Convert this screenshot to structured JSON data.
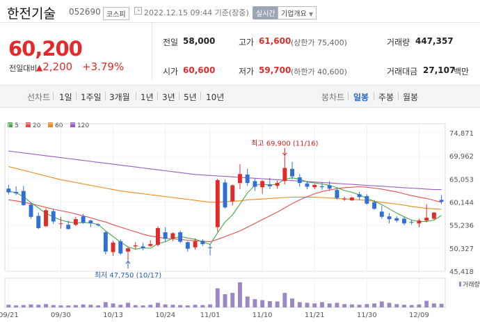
{
  "header": {
    "company_name": "한전기술",
    "stock_code": "052690",
    "market": "코스피",
    "datetime": "2022.12.15 09:44 기준(장중)",
    "realtime_label": "실시간",
    "overview_label": "기업개요"
  },
  "price": {
    "current": "60,200",
    "change_label": "전일대비",
    "change": "2,200",
    "change_pct": "+3.79%"
  },
  "stats": {
    "prev_close": {
      "label": "전일",
      "value": "58,000"
    },
    "high": {
      "label": "고가",
      "value": "61,600",
      "sub": "(상한가 75,400)"
    },
    "volume": {
      "label": "거래량",
      "value": "447,357"
    },
    "open": {
      "label": "시가",
      "value": "60,600"
    },
    "low": {
      "label": "저가",
      "value": "59,700",
      "sub": "(하한가 40,600)"
    },
    "amount": {
      "label": "거래대금",
      "value": "27,107",
      "unit": "백만"
    }
  },
  "period_tabs": {
    "line_chart_label": "선차트",
    "line_items": [
      "1일",
      "1주일",
      "3개월",
      "1년",
      "3년",
      "5년",
      "10년"
    ],
    "candle_chart_label": "봉차트",
    "candle_items": [
      "일봉",
      "주봉",
      "월봉"
    ],
    "active": "일봉"
  },
  "colors": {
    "up": "#e12b2b",
    "down": "#2f6fd6",
    "ma5": "#43a743",
    "ma20": "#e94b4b",
    "ma60": "#f08a1c",
    "ma120": "#9b59c6"
  },
  "chart_data": {
    "type": "candlestick",
    "legend": [
      {
        "label": "5",
        "color": "#43a743"
      },
      {
        "label": "20",
        "color": "#e94b4b"
      },
      {
        "label": "60",
        "color": "#f08a1c"
      },
      {
        "label": "120",
        "color": "#9b59c6"
      }
    ],
    "y_ticks": [
      "74,871",
      "69,962",
      "65,053",
      "60,144",
      "55,236",
      "50,327",
      "45,418"
    ],
    "ylim": [
      45418,
      74871
    ],
    "x_ticks": [
      "09/21",
      "09/30",
      "10/13",
      "10/24",
      "11/01",
      "11/10",
      "11/21",
      "11/30",
      "12/09"
    ],
    "x_tick_index": [
      0,
      7,
      14,
      21,
      27,
      34,
      41,
      48,
      55
    ],
    "max_annotation": "최고 69,900 (11/16)",
    "max_index": 37,
    "min_annotation": "최저 47,750 (10/17)",
    "min_index": 16,
    "volume_label": "거래량",
    "candles": [
      {
        "o": 63000,
        "h": 63800,
        "l": 61800,
        "c": 62200
      },
      {
        "o": 62300,
        "h": 63500,
        "l": 61600,
        "c": 62000
      },
      {
        "o": 62500,
        "h": 63600,
        "l": 59300,
        "c": 59500
      },
      {
        "o": 59600,
        "h": 60100,
        "l": 56600,
        "c": 57000
      },
      {
        "o": 57200,
        "h": 57900,
        "l": 54400,
        "c": 54600
      },
      {
        "o": 55000,
        "h": 58800,
        "l": 54800,
        "c": 58400
      },
      {
        "o": 58200,
        "h": 58700,
        "l": 55500,
        "c": 56000
      },
      {
        "o": 55600,
        "h": 57000,
        "l": 54500,
        "c": 55600
      },
      {
        "o": 55300,
        "h": 56200,
        "l": 54300,
        "c": 54400
      },
      {
        "o": 55300,
        "h": 57000,
        "l": 55000,
        "c": 56500
      },
      {
        "o": 57100,
        "h": 57600,
        "l": 55500,
        "c": 55700
      },
      {
        "o": 56200,
        "h": 56400,
        "l": 54800,
        "c": 55600
      },
      {
        "o": 55400,
        "h": 55600,
        "l": 54900,
        "c": 55200
      },
      {
        "o": 53700,
        "h": 54000,
        "l": 49000,
        "c": 49600
      },
      {
        "o": 49500,
        "h": 51900,
        "l": 48700,
        "c": 51500
      },
      {
        "o": 51800,
        "h": 52200,
        "l": 48900,
        "c": 49200
      },
      {
        "o": 49600,
        "h": 50700,
        "l": 47750,
        "c": 50300
      },
      {
        "o": 50700,
        "h": 51600,
        "l": 50200,
        "c": 50900
      },
      {
        "o": 50700,
        "h": 51400,
        "l": 49900,
        "c": 50300
      },
      {
        "o": 50800,
        "h": 52000,
        "l": 50600,
        "c": 51200
      },
      {
        "o": 51000,
        "h": 55000,
        "l": 50700,
        "c": 54600
      },
      {
        "o": 53700,
        "h": 54800,
        "l": 51600,
        "c": 52300
      },
      {
        "o": 52400,
        "h": 53700,
        "l": 51800,
        "c": 53500
      },
      {
        "o": 53700,
        "h": 54100,
        "l": 51400,
        "c": 51700
      },
      {
        "o": 51600,
        "h": 51800,
        "l": 49600,
        "c": 50200
      },
      {
        "o": 50500,
        "h": 52400,
        "l": 50000,
        "c": 51800
      },
      {
        "o": 51900,
        "h": 52200,
        "l": 50800,
        "c": 51200
      },
      {
        "o": 50500,
        "h": 51200,
        "l": 48800,
        "c": 50400
      },
      {
        "o": 54800,
        "h": 65100,
        "l": 53800,
        "c": 64800
      },
      {
        "o": 64300,
        "h": 64900,
        "l": 58800,
        "c": 59000
      },
      {
        "o": 60300,
        "h": 63900,
        "l": 59400,
        "c": 63700
      },
      {
        "o": 64200,
        "h": 68200,
        "l": 62900,
        "c": 66100
      },
      {
        "o": 66000,
        "h": 67200,
        "l": 63600,
        "c": 64200
      },
      {
        "o": 64600,
        "h": 65200,
        "l": 62500,
        "c": 63400
      },
      {
        "o": 63300,
        "h": 64900,
        "l": 61900,
        "c": 64600
      },
      {
        "o": 63900,
        "h": 65300,
        "l": 62900,
        "c": 63500
      },
      {
        "o": 63600,
        "h": 64700,
        "l": 63000,
        "c": 64200
      },
      {
        "o": 64600,
        "h": 69900,
        "l": 63900,
        "c": 67400
      },
      {
        "o": 67200,
        "h": 68700,
        "l": 65000,
        "c": 65600
      },
      {
        "o": 65400,
        "h": 66100,
        "l": 63400,
        "c": 64200
      },
      {
        "o": 64100,
        "h": 64600,
        "l": 62900,
        "c": 63400
      },
      {
        "o": 63300,
        "h": 64000,
        "l": 62900,
        "c": 63800
      },
      {
        "o": 63500,
        "h": 64300,
        "l": 62800,
        "c": 63300
      },
      {
        "o": 63700,
        "h": 64600,
        "l": 62500,
        "c": 63000
      },
      {
        "o": 62700,
        "h": 63100,
        "l": 60700,
        "c": 61000
      },
      {
        "o": 60700,
        "h": 61300,
        "l": 60400,
        "c": 60900
      },
      {
        "o": 60500,
        "h": 61300,
        "l": 60400,
        "c": 61100
      },
      {
        "o": 61800,
        "h": 62300,
        "l": 60600,
        "c": 61200
      },
      {
        "o": 61400,
        "h": 61800,
        "l": 59600,
        "c": 59800
      },
      {
        "o": 60100,
        "h": 60600,
        "l": 58500,
        "c": 58700
      },
      {
        "o": 58100,
        "h": 59400,
        "l": 56600,
        "c": 57000
      },
      {
        "o": 57100,
        "h": 57800,
        "l": 55600,
        "c": 56500
      },
      {
        "o": 56700,
        "h": 57100,
        "l": 55800,
        "c": 56200
      },
      {
        "o": 56600,
        "h": 57000,
        "l": 55200,
        "c": 55600
      },
      {
        "o": 55900,
        "h": 56400,
        "l": 55300,
        "c": 55800
      },
      {
        "o": 55600,
        "h": 56600,
        "l": 54800,
        "c": 56200
      },
      {
        "o": 56200,
        "h": 59700,
        "l": 55800,
        "c": 56800
      },
      {
        "o": 56600,
        "h": 58000,
        "l": 56300,
        "c": 57900
      },
      {
        "o": 60600,
        "h": 61600,
        "l": 59700,
        "c": 60200
      }
    ],
    "volumes": [
      8,
      6,
      7,
      9,
      8,
      10,
      7,
      6,
      6,
      7,
      9,
      8,
      6,
      16,
      12,
      8,
      14,
      7,
      6,
      8,
      14,
      9,
      8,
      7,
      6,
      8,
      7,
      9,
      58,
      40,
      44,
      76,
      33,
      25,
      22,
      19,
      18,
      44,
      27,
      16,
      14,
      12,
      16,
      12,
      14,
      10,
      9,
      8,
      10,
      12,
      18,
      14,
      10,
      8,
      7,
      9,
      20,
      12,
      11
    ],
    "ma5": [
      62500,
      62100,
      61300,
      60000,
      58900,
      57700,
      57000,
      56300,
      55900,
      55700,
      55800,
      55700,
      55400,
      54000,
      52800,
      51600,
      50600,
      50100,
      50400,
      50300,
      51300,
      51700,
      52400,
      52800,
      52500,
      52200,
      51700,
      51100,
      53600,
      55900,
      57400,
      59700,
      62100,
      63700,
      64000,
      63700,
      64000,
      65000,
      65300,
      65000,
      64400,
      64200,
      64000,
      63700,
      63200,
      62600,
      62200,
      61700,
      60900,
      60300,
      59600,
      58700,
      57800,
      57000,
      56300,
      56000,
      56000,
      56300,
      57300
    ],
    "ma20": [
      60600,
      60400,
      60100,
      59800,
      59400,
      59000,
      58600,
      58300,
      58000,
      57600,
      57200,
      56800,
      56300,
      55900,
      55300,
      54800,
      54300,
      53800,
      53300,
      52900,
      52700,
      52400,
      52300,
      52200,
      52000,
      51900,
      51800,
      51700,
      52200,
      52800,
      53400,
      54000,
      54800,
      55600,
      56400,
      57200,
      58000,
      58900,
      59800,
      60600,
      61300,
      61900,
      62400,
      62700,
      63000,
      63200,
      63300,
      63400,
      63300,
      63100,
      62900,
      62600,
      62300,
      61900,
      61500,
      61200,
      60900,
      60500,
      60100
    ],
    "ma60": [
      67700,
      67300,
      66900,
      66500,
      66100,
      65700,
      65300,
      64900,
      64600,
      64300,
      64000,
      63700,
      63400,
      63100,
      62800,
      62500,
      62300,
      62100,
      61900,
      61700,
      61500,
      61300,
      61100,
      60900,
      60700,
      60500,
      60300,
      60100,
      60100,
      60200,
      60300,
      60400,
      60600,
      60700,
      60800,
      60900,
      61000,
      61100,
      61200,
      61200,
      61200,
      61200,
      61100,
      61000,
      60900,
      60800,
      60700,
      60600,
      60500,
      60300,
      60100,
      59900,
      59700,
      59500,
      59200,
      59000,
      58800,
      58700,
      58600
    ],
    "ma120": [
      71000,
      70800,
      70600,
      70400,
      70200,
      70000,
      69800,
      69600,
      69400,
      69200,
      69000,
      68800,
      68600,
      68400,
      68200,
      68000,
      67800,
      67600,
      67400,
      67200,
      67000,
      66800,
      66600,
      66400,
      66200,
      66000,
      65900,
      65800,
      65700,
      65600,
      65500,
      65400,
      65300,
      65200,
      65100,
      65000,
      64900,
      64800,
      64700,
      64600,
      64500,
      64400,
      64300,
      64200,
      64100,
      64000,
      63900,
      63800,
      63700,
      63600,
      63500,
      63400,
      63300,
      63200,
      63100,
      63000,
      62900,
      62800,
      62800
    ]
  }
}
